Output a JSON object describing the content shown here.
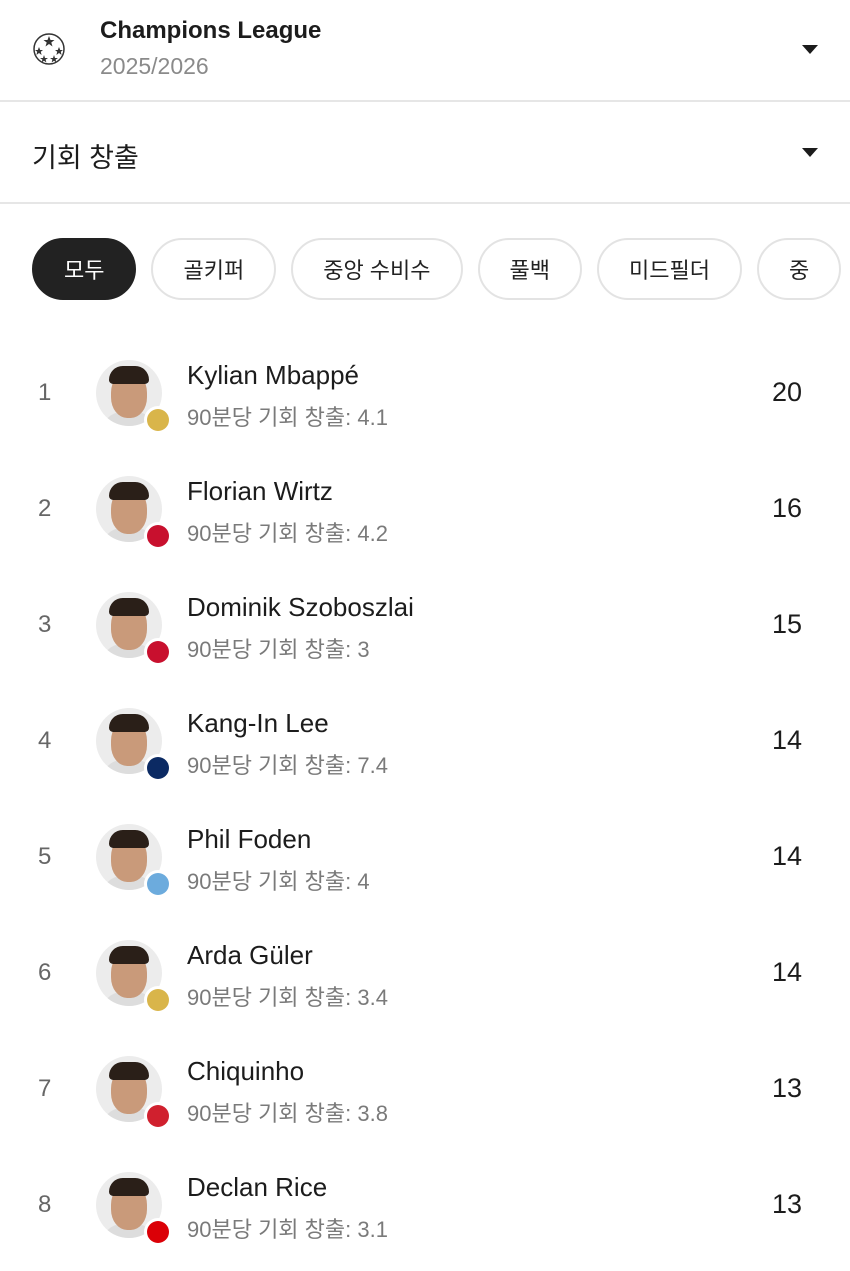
{
  "league": {
    "name": "Champions League",
    "season": "2025/2026",
    "icon": "champions-league-starball-icon"
  },
  "stat_selector": {
    "label": "기회 창출"
  },
  "filters": [
    {
      "label": "모두",
      "active": true
    },
    {
      "label": "골키퍼",
      "active": false
    },
    {
      "label": "중앙 수비수",
      "active": false
    },
    {
      "label": "풀백",
      "active": false
    },
    {
      "label": "미드필더",
      "active": false
    },
    {
      "label": "중",
      "active": false
    }
  ],
  "players": [
    {
      "rank": "1",
      "name": "Kylian Mbappé",
      "sub": "90분당 기회 창출: 4.1",
      "value": "20",
      "team_color": "#d9b54a"
    },
    {
      "rank": "2",
      "name": "Florian Wirtz",
      "sub": "90분당 기회 창출: 4.2",
      "value": "16",
      "team_color": "#c8102e"
    },
    {
      "rank": "3",
      "name": "Dominik Szoboszlai",
      "sub": "90분당 기회 창출: 3",
      "value": "15",
      "team_color": "#c8102e"
    },
    {
      "rank": "4",
      "name": "Kang-In Lee",
      "sub": "90분당 기회 창출: 7.4",
      "value": "14",
      "team_color": "#0b2a63"
    },
    {
      "rank": "5",
      "name": "Phil Foden",
      "sub": "90분당 기회 창출: 4",
      "value": "14",
      "team_color": "#6cabdd"
    },
    {
      "rank": "6",
      "name": "Arda Güler",
      "sub": "90분당 기회 창출: 3.4",
      "value": "14",
      "team_color": "#d9b54a"
    },
    {
      "rank": "7",
      "name": "Chiquinho",
      "sub": "90분당 기회 창출: 3.8",
      "value": "13",
      "team_color": "#d0202e"
    },
    {
      "rank": "8",
      "name": "Declan Rice",
      "sub": "90분당 기회 창출: 3.1",
      "value": "13",
      "team_color": "#db0007"
    }
  ]
}
